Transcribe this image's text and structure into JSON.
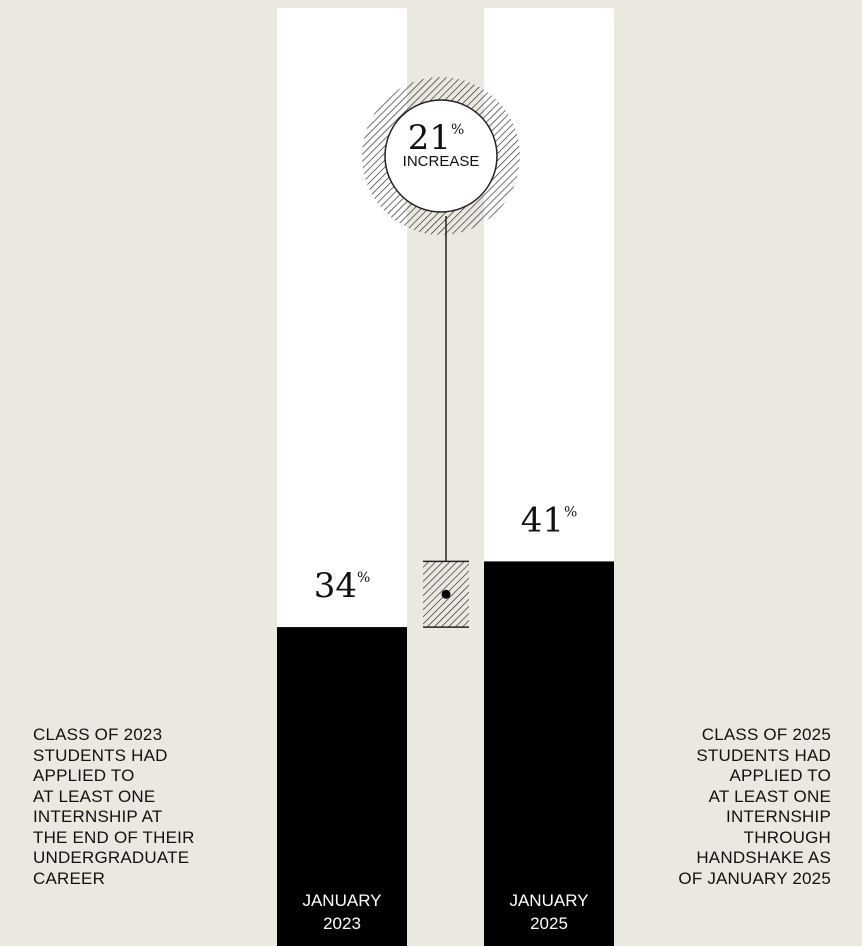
{
  "chart_data": {
    "type": "bar",
    "categories": [
      "JANUARY\n2023",
      "JANUARY\n2025"
    ],
    "values": [
      34,
      41
    ],
    "value_labels": [
      "34",
      "41"
    ],
    "value_suffix": "%",
    "ylim": [
      0,
      100
    ],
    "increase": {
      "value": "21",
      "suffix": "%",
      "label": "INCREASE"
    },
    "colors": {
      "bar": "#000000",
      "track": "#ffffff",
      "background": "#ebe8e0",
      "text_on_bar": "#ffffff"
    }
  },
  "descriptions": {
    "left": "CLASS OF 2023\nSTUDENTS HAD\nAPPLIED TO\nAT LEAST ONE\nINTERNSHIP AT\nTHE END OF THEIR\nUNDERGRADUATE\nCAREER",
    "right": "CLASS OF 2025\nSTUDENTS HAD\nAPPLIED TO\nAT LEAST ONE\nINTERNSHIP\nTHROUGH\nHANDSHAKE AS\nOF JANUARY 2025"
  }
}
